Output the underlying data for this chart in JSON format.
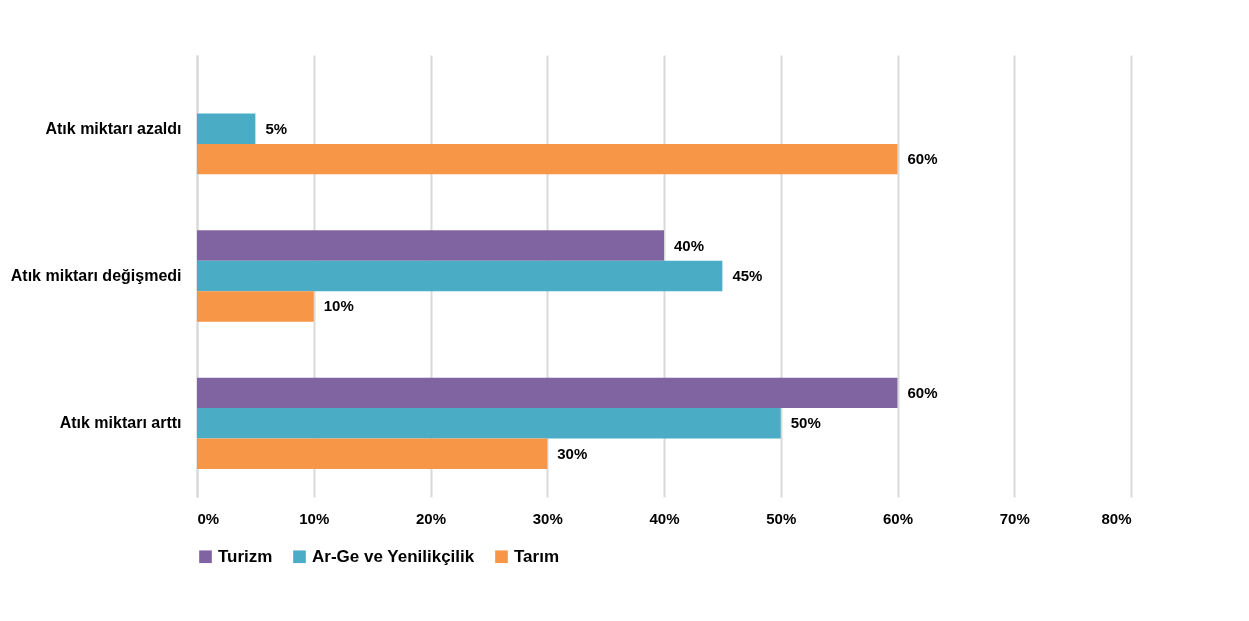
{
  "chart_data": {
    "type": "bar",
    "orientation": "horizontal",
    "categories": [
      "Atık miktarı azaldı",
      "Atık miktarı değişmedi",
      "Atık miktarı arttı"
    ],
    "series": [
      {
        "name": "Turizm",
        "color": "#8064a2",
        "values": [
          null,
          40,
          60
        ],
        "value_labels": [
          null,
          "40%",
          "60%"
        ]
      },
      {
        "name": "Ar-Ge ve Yenilikçilik",
        "color": "#4bacc6",
        "values": [
          5,
          45,
          50
        ],
        "value_labels": [
          "5%",
          "45%",
          "50%"
        ]
      },
      {
        "name": "Tarım",
        "color": "#f79646",
        "values": [
          60,
          10,
          30
        ],
        "value_labels": [
          "60%",
          "10%",
          "30%"
        ]
      }
    ],
    "xlim": [
      0,
      80
    ],
    "xticks": [
      {
        "value": 0,
        "label": "0%"
      },
      {
        "value": 10,
        "label": "10%"
      },
      {
        "value": 20,
        "label": "20%"
      },
      {
        "value": 30,
        "label": "30%"
      },
      {
        "value": 40,
        "label": "40%"
      },
      {
        "value": 50,
        "label": "50%"
      },
      {
        "value": 60,
        "label": "60%"
      },
      {
        "value": 70,
        "label": "70%"
      },
      {
        "value": 80,
        "label": "80%"
      }
    ],
    "grid": "x",
    "legend": "bottom"
  }
}
